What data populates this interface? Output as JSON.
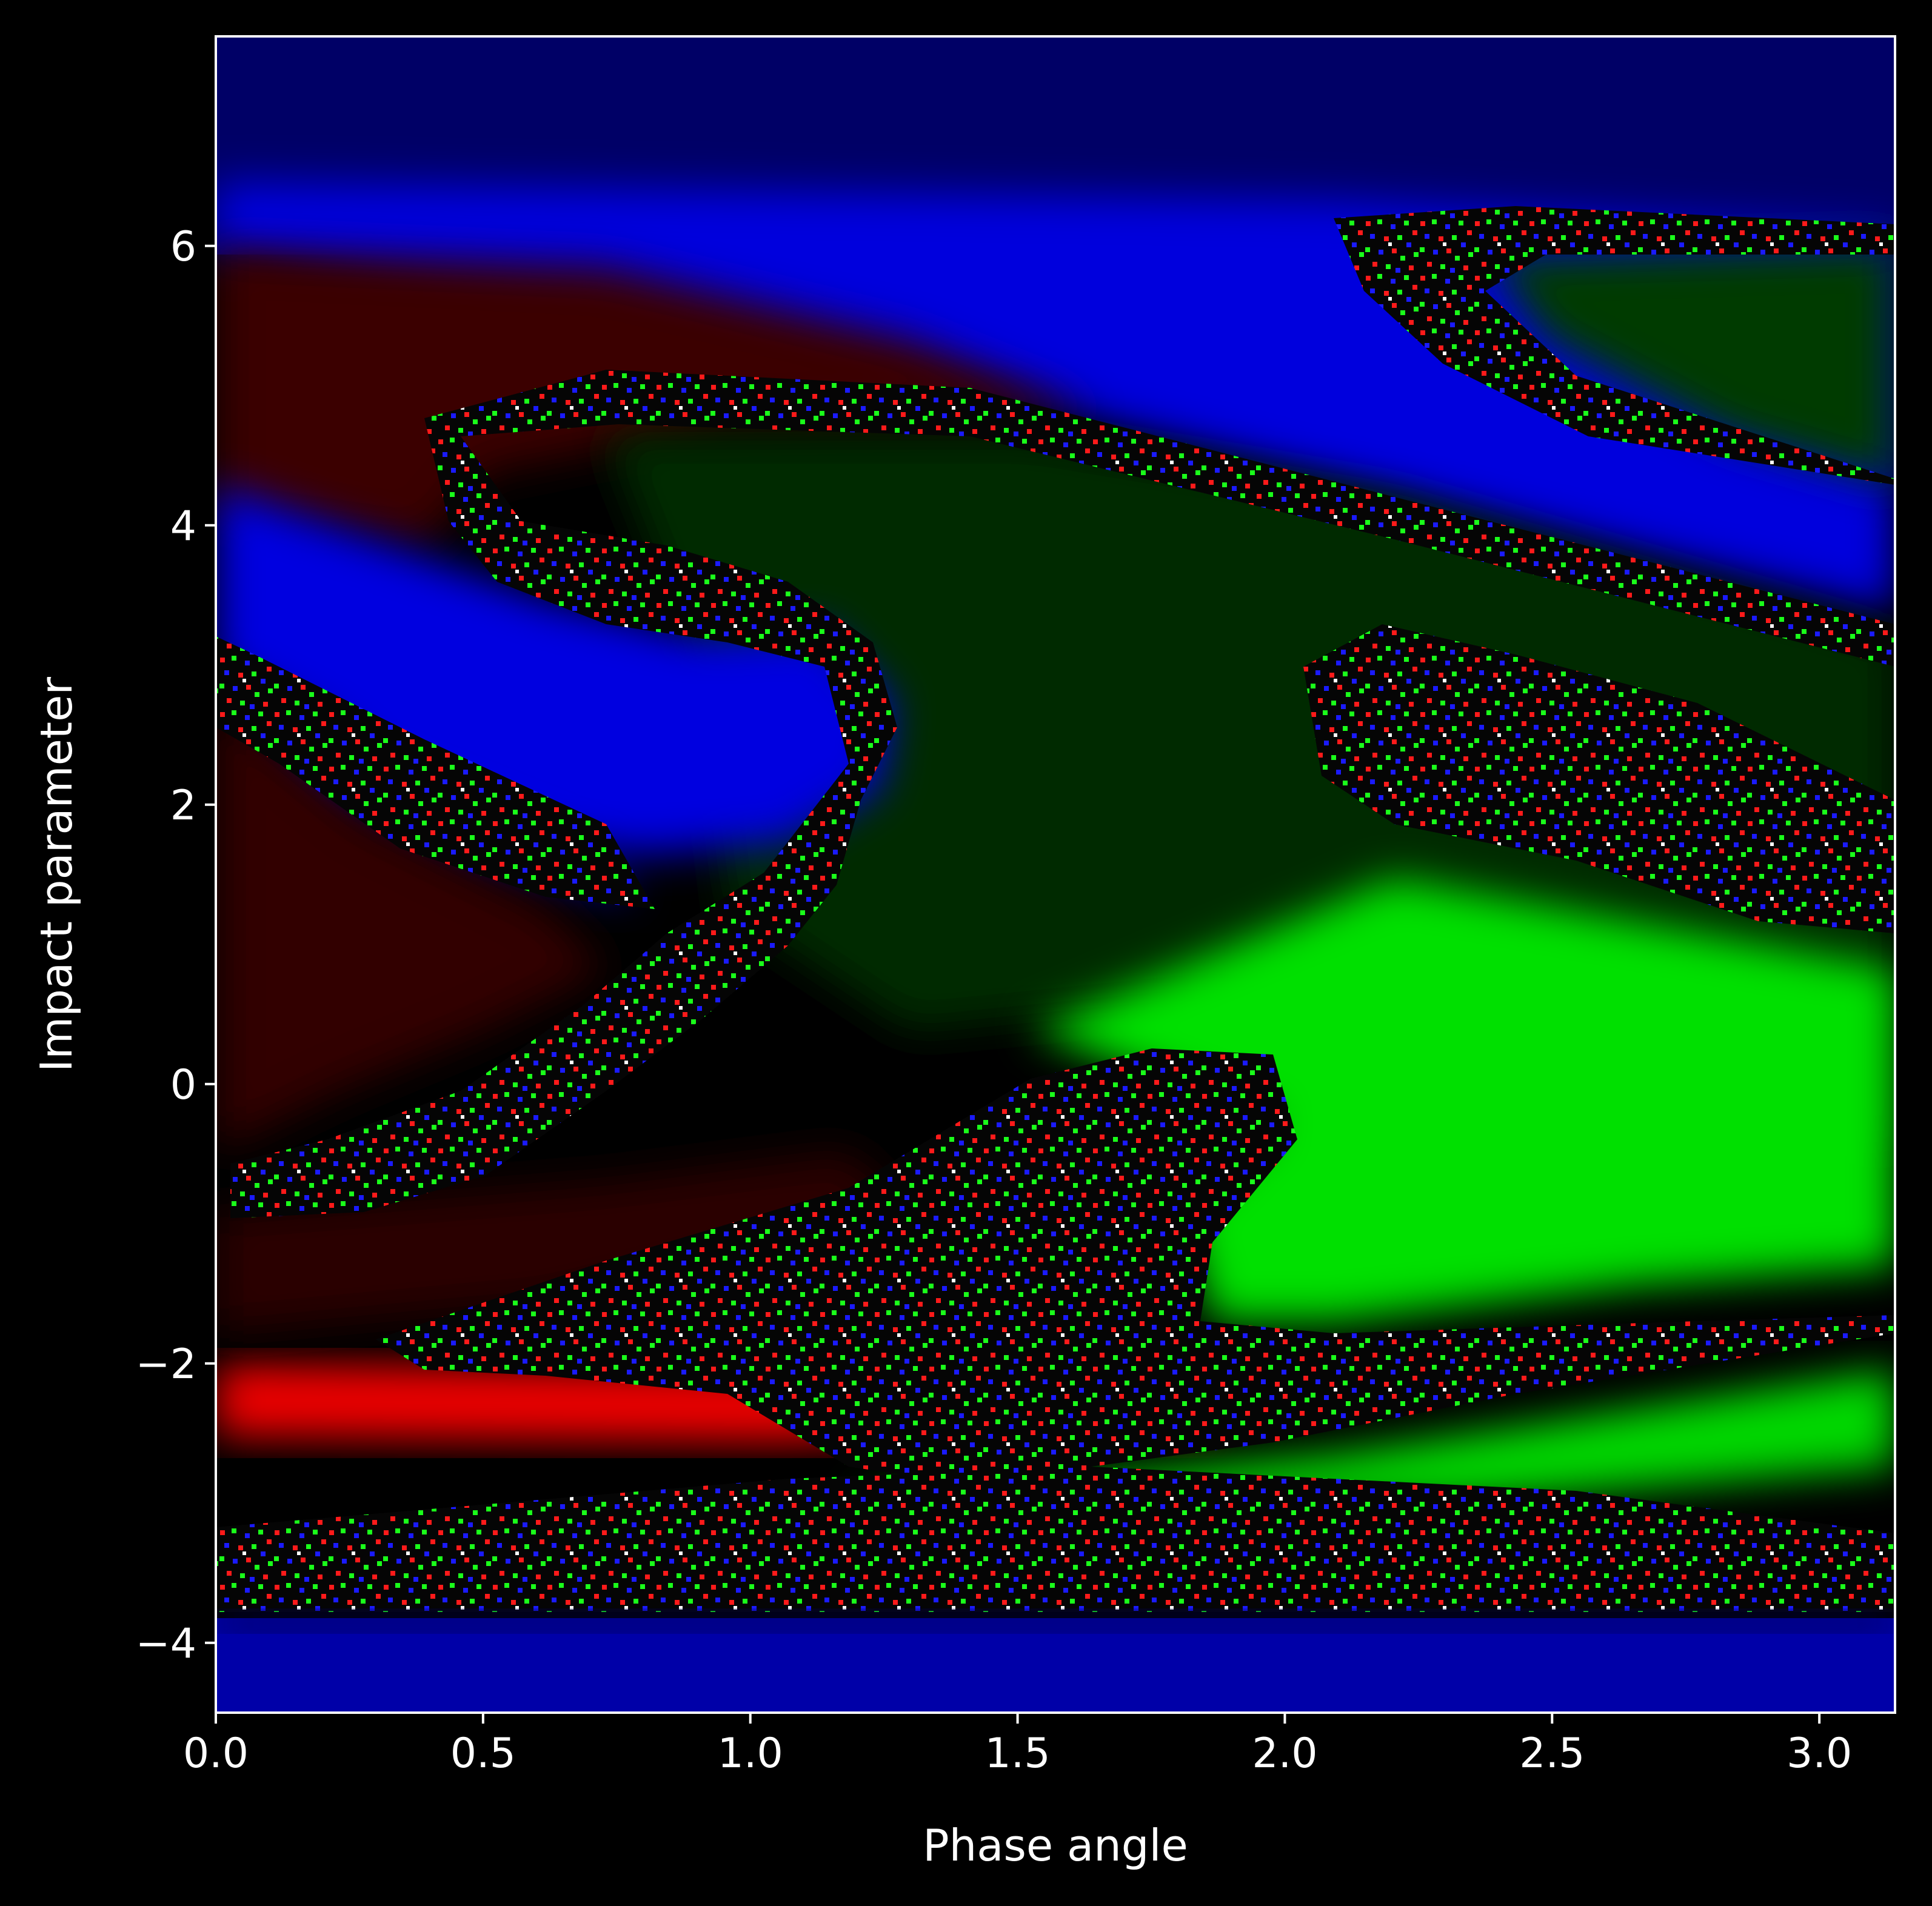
{
  "chart_data": {
    "type": "heatmap",
    "title": "",
    "xlabel": "Phase angle",
    "ylabel": "Impact parameter",
    "xlim": [
      0.0,
      3.14159
    ],
    "ylim": [
      -4.5,
      7.5
    ],
    "x_ticks": [
      {
        "value": 0.0,
        "label": "0.0"
      },
      {
        "value": 0.5,
        "label": "0.5"
      },
      {
        "value": 1.0,
        "label": "1.0"
      },
      {
        "value": 1.5,
        "label": "1.5"
      },
      {
        "value": 2.0,
        "label": "2.0"
      },
      {
        "value": 2.5,
        "label": "2.5"
      },
      {
        "value": 3.0,
        "label": "3.0"
      }
    ],
    "y_ticks": [
      {
        "value": -4,
        "label": "−4"
      },
      {
        "value": -2,
        "label": "−2"
      },
      {
        "value": 0,
        "label": "0"
      },
      {
        "value": 2,
        "label": "2"
      },
      {
        "value": 4,
        "label": "4"
      },
      {
        "value": 6,
        "label": "6"
      }
    ],
    "grid": false,
    "legend": "none",
    "colors": {
      "outcome_red": "#ff0000",
      "outcome_green": "#00ff00",
      "outcome_blue": "#0000ff",
      "background": "#000000",
      "axis": "#ffffff"
    },
    "regions": [
      {
        "name": "blue-top-band",
        "color": "blue",
        "x": [
          0.0,
          3.14
        ],
        "y_center": 6.8
      },
      {
        "name": "red-upper-left",
        "color": "red",
        "x": [
          0.0,
          1.6
        ],
        "y_center": 5.2
      },
      {
        "name": "green-top-right",
        "color": "green",
        "x": [
          2.5,
          3.14
        ],
        "y_center": 5.6
      },
      {
        "name": "green-central",
        "color": "green",
        "x": [
          0.8,
          3.14
        ],
        "y_center": 3.8
      },
      {
        "name": "blue-lobe-left",
        "color": "blue",
        "x": [
          0.0,
          1.27
        ],
        "y_center": 2.8
      },
      {
        "name": "red-middle-left",
        "color": "red",
        "x": [
          0.0,
          1.0
        ],
        "y_center": 1.0
      },
      {
        "name": "bright-green-lower-right",
        "color": "green",
        "x": [
          1.8,
          3.14
        ],
        "y_center": -0.6
      },
      {
        "name": "red-band-lower",
        "color": "red",
        "x": [
          0.0,
          2.0
        ],
        "y_center": -2.2
      },
      {
        "name": "green-band-lower",
        "color": "green",
        "x": [
          1.2,
          3.14
        ],
        "y_center": -2.6
      },
      {
        "name": "chaotic-band-bottom",
        "color": "mixed",
        "x": [
          0.0,
          3.14
        ],
        "y_center": -3.5
      },
      {
        "name": "blue-bottom-band",
        "color": "blue",
        "x": [
          0.0,
          3.14
        ],
        "y_center": -4.1
      }
    ]
  }
}
